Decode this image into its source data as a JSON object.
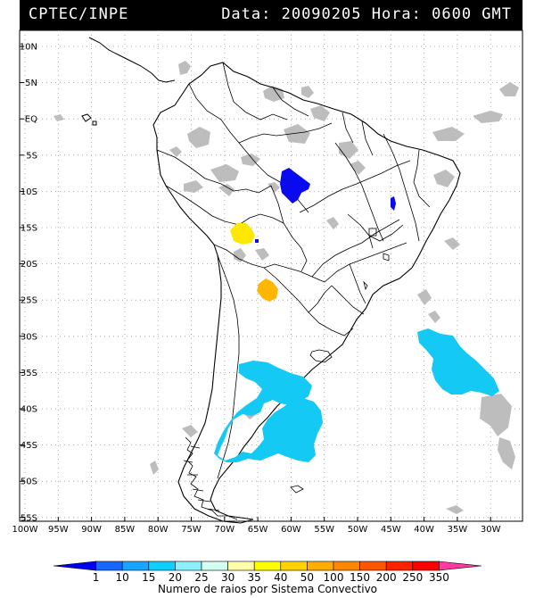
{
  "header": {
    "source": "CPTEC/INPE",
    "datetime": "Data: 20090205 Hora: 0600 GMT"
  },
  "axes": {
    "lat_labels": [
      "10N",
      "5N",
      "EQ",
      "5S",
      "10S",
      "15S",
      "20S",
      "25S",
      "30S",
      "35S",
      "40S",
      "45S",
      "50S",
      "55S"
    ],
    "lon_labels": [
      "100W",
      "95W",
      "90W",
      "85W",
      "80W",
      "75W",
      "70W",
      "65W",
      "60W",
      "55W",
      "50W",
      "45W",
      "40W",
      "35W",
      "30W"
    ]
  },
  "legend": {
    "title": "Numero de raios por Sistema Convectivo",
    "ticks": [
      "1",
      "10",
      "15",
      "20",
      "25",
      "30",
      "35",
      "40",
      "50",
      "100",
      "150",
      "200",
      "250",
      "350"
    ],
    "colors": [
      "#0000ee",
      "#1766ff",
      "#1aa3ff",
      "#0fcfff",
      "#8cf0ff",
      "#d4fff2",
      "#fffcaa",
      "#ffff00",
      "#ffd200",
      "#ffae00",
      "#ff8800",
      "#ff5500",
      "#ff2200",
      "#ff0000",
      "#ff3aa0"
    ]
  },
  "colors": {
    "cloud_gray": "#bdbdbd",
    "cyan_systems": "#15c9f5",
    "blue_systems": "#0a0aee",
    "yellow_system": "#ffe800",
    "orange_system": "#ffb600"
  }
}
